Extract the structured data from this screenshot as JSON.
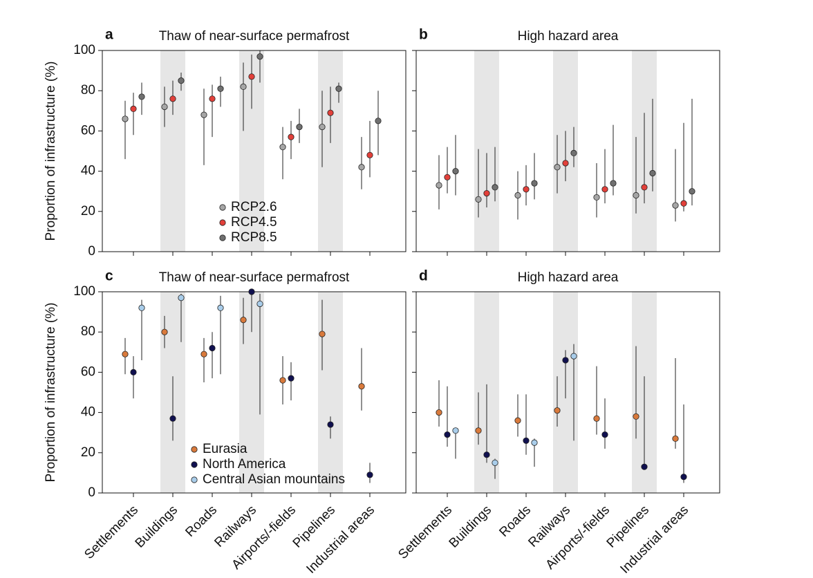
{
  "chart_data": [
    {
      "type": "errorbar",
      "panel": "a",
      "title": "Thaw of near-surface permafrost",
      "ylabel": "Proportion of infrastructure (%)",
      "ylim": [
        0,
        100
      ],
      "yticks": [
        0,
        20,
        40,
        60,
        80,
        100
      ],
      "series": [
        {
          "name": "RCP2.6",
          "color": "#a6a6a6",
          "values": [
            66,
            72,
            68,
            82,
            52,
            62,
            42
          ],
          "low": [
            46,
            62,
            43,
            60,
            36,
            42,
            31
          ],
          "high": [
            75,
            82,
            81,
            94,
            62,
            80,
            57
          ]
        },
        {
          "name": "RCP4.5",
          "color": "#e2403a",
          "values": [
            71,
            76,
            76,
            87,
            57,
            69,
            48
          ],
          "low": [
            58,
            68,
            57,
            71,
            46,
            54,
            37
          ],
          "high": [
            79,
            85,
            83,
            98,
            65,
            82,
            65
          ]
        },
        {
          "name": "RCP8.5",
          "color": "#707070",
          "values": [
            77,
            85,
            81,
            97,
            62,
            81,
            65
          ],
          "low": [
            68,
            80,
            72,
            84,
            54,
            74,
            48
          ],
          "high": [
            84,
            89,
            87,
            100,
            71,
            84,
            80
          ]
        }
      ]
    },
    {
      "type": "errorbar",
      "panel": "b",
      "title": "High hazard area",
      "ylim": [
        0,
        100
      ],
      "yticks": [
        0,
        20,
        40,
        60,
        80,
        100
      ],
      "series": [
        {
          "name": "RCP2.6",
          "color": "#a6a6a6",
          "values": [
            33,
            26,
            28,
            42,
            27,
            28,
            23
          ],
          "low": [
            21,
            17,
            16,
            29,
            17,
            19,
            15
          ],
          "high": [
            48,
            51,
            40,
            58,
            44,
            57,
            51
          ]
        },
        {
          "name": "RCP4.5",
          "color": "#e2403a",
          "values": [
            37,
            29,
            31,
            44,
            31,
            32,
            24
          ],
          "low": [
            29,
            22,
            23,
            35,
            24,
            24,
            20
          ],
          "high": [
            52,
            49,
            43,
            60,
            51,
            69,
            64
          ]
        },
        {
          "name": "RCP8.5",
          "color": "#707070",
          "values": [
            40,
            32,
            34,
            49,
            34,
            39,
            30
          ],
          "low": [
            28,
            25,
            26,
            42,
            28,
            30,
            23
          ],
          "high": [
            58,
            52,
            49,
            62,
            63,
            76,
            76
          ]
        }
      ]
    },
    {
      "type": "errorbar",
      "panel": "c",
      "title": "Thaw of near-surface permafrost",
      "ylabel": "Proportion of infrastructure (%)",
      "categories": [
        "Settlements",
        "Buildings",
        "Roads",
        "Railways",
        "Airports/-fields",
        "Pipelines",
        "Industrial areas"
      ],
      "ylim": [
        0,
        100
      ],
      "yticks": [
        0,
        20,
        40,
        60,
        80,
        100
      ],
      "series": [
        {
          "name": "Eurasia",
          "color": "#d97a3c",
          "values": [
            69,
            80,
            69,
            86,
            56,
            79,
            53
          ],
          "low": [
            59,
            72,
            55,
            74,
            44,
            61,
            41
          ],
          "high": [
            77,
            88,
            77,
            97,
            68,
            96,
            72
          ]
        },
        {
          "name": "North America",
          "color": "#10104f",
          "values": [
            60,
            37,
            72,
            100,
            57,
            34,
            9
          ],
          "low": [
            47,
            26,
            57,
            80,
            46,
            27,
            5
          ],
          "high": [
            68,
            58,
            80,
            100,
            65,
            38,
            15
          ]
        },
        {
          "name": "Central Asian mountains",
          "color": "#a9cdea",
          "values": [
            92,
            97,
            92,
            94,
            null,
            null,
            null
          ],
          "low": [
            66,
            75,
            59,
            39,
            null,
            null,
            null
          ],
          "high": [
            96,
            99,
            98,
            99,
            null,
            null,
            null
          ]
        }
      ]
    },
    {
      "type": "errorbar",
      "panel": "d",
      "title": "High hazard area",
      "categories": [
        "Settlements",
        "Buildings",
        "Roads",
        "Railways",
        "Airports/-fields",
        "Pipelines",
        "Industrial areas"
      ],
      "ylim": [
        0,
        100
      ],
      "yticks": [
        0,
        20,
        40,
        60,
        80,
        100
      ],
      "series": [
        {
          "name": "Eurasia",
          "color": "#d97a3c",
          "values": [
            40,
            31,
            36,
            41,
            37,
            38,
            27
          ],
          "low": [
            33,
            24,
            28,
            33,
            29,
            27,
            22
          ],
          "high": [
            56,
            50,
            49,
            58,
            63,
            73,
            67
          ]
        },
        {
          "name": "North America",
          "color": "#10104f",
          "values": [
            29,
            19,
            26,
            66,
            29,
            13,
            8
          ],
          "low": [
            23,
            15,
            19,
            47,
            22,
            13,
            5
          ],
          "high": [
            53,
            54,
            49,
            71,
            47,
            58,
            44
          ]
        },
        {
          "name": "Central Asian mountains",
          "color": "#a9cdea",
          "values": [
            31,
            15,
            25,
            68,
            null,
            null,
            null
          ],
          "low": [
            17,
            7,
            13,
            26,
            null,
            null,
            null
          ],
          "high": [
            32,
            17,
            27,
            74,
            null,
            null,
            null
          ]
        }
      ]
    }
  ]
}
